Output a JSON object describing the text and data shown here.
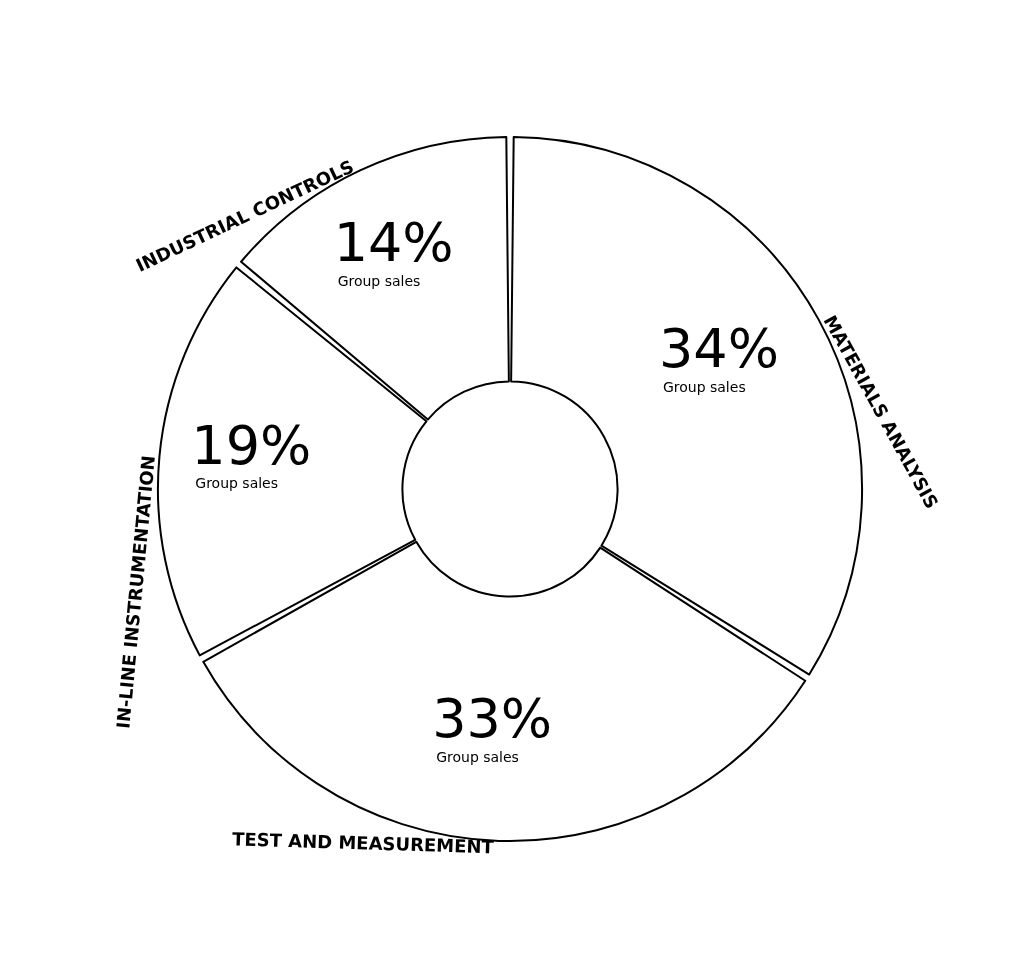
{
  "chart_data": {
    "type": "donut",
    "categories": [
      "MATERIALS ANALYSIS",
      "TEST AND MEASUREMENT",
      "IN-LINE INSTRUMENTATION",
      "INDUSTRIAL CONTROLS"
    ],
    "values": [
      34,
      33,
      19,
      14
    ],
    "colors": [
      "#ffffff",
      "#ffffff",
      "#ffffff",
      "#ffffff"
    ],
    "value_labels": [
      "34%\nGroup sales",
      "33%\nGroup sales",
      "19%\nGroup sales",
      "14%\nGroup sales"
    ],
    "legend": false
  }
}
